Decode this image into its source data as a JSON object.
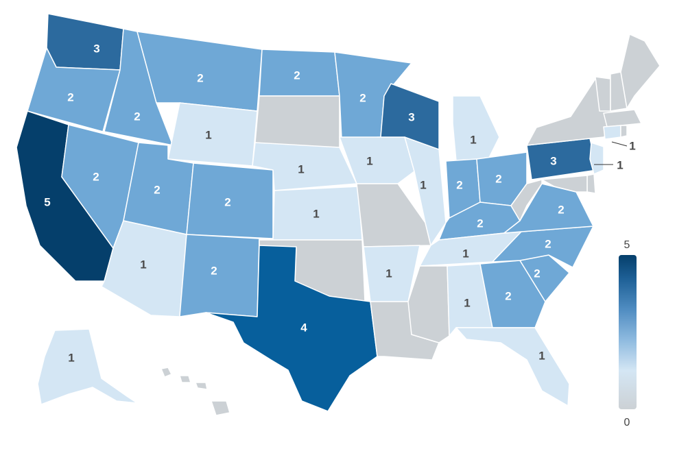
{
  "colors": {
    "0": "#ccd1d5",
    "1": "#d4e6f4",
    "2": "#6fa8d6",
    "3": "#2c6a9e",
    "4": "#075f9c",
    "5": "#053f6b",
    "label_dark": "#ffffff",
    "label_light": "#4a4a4a"
  },
  "legend": {
    "max_label": "5",
    "min_label": "0",
    "min": 0,
    "max": 5
  },
  "states": [
    {
      "id": "WA",
      "value": 3,
      "label": "3"
    },
    {
      "id": "OR",
      "value": 2,
      "label": "2"
    },
    {
      "id": "CA",
      "value": 5,
      "label": "5"
    },
    {
      "id": "ID",
      "value": 2,
      "label": "2"
    },
    {
      "id": "NV",
      "value": 2,
      "label": "2"
    },
    {
      "id": "MT",
      "value": 2,
      "label": "2"
    },
    {
      "id": "WY",
      "value": 1,
      "label": "1"
    },
    {
      "id": "UT",
      "value": 2,
      "label": "2"
    },
    {
      "id": "AZ",
      "value": 1,
      "label": "1"
    },
    {
      "id": "CO",
      "value": 2,
      "label": "2"
    },
    {
      "id": "NM",
      "value": 2,
      "label": "2"
    },
    {
      "id": "ND",
      "value": 2,
      "label": "2"
    },
    {
      "id": "SD",
      "value": 0,
      "label": ""
    },
    {
      "id": "NE",
      "value": 1,
      "label": "1"
    },
    {
      "id": "KS",
      "value": 1,
      "label": "1"
    },
    {
      "id": "OK",
      "value": 0,
      "label": ""
    },
    {
      "id": "TX",
      "value": 4,
      "label": "4"
    },
    {
      "id": "MN",
      "value": 2,
      "label": "2"
    },
    {
      "id": "IA",
      "value": 1,
      "label": "1"
    },
    {
      "id": "MO",
      "value": 0,
      "label": ""
    },
    {
      "id": "AR",
      "value": 1,
      "label": "1"
    },
    {
      "id": "LA",
      "value": 0,
      "label": ""
    },
    {
      "id": "WI",
      "value": 3,
      "label": "3"
    },
    {
      "id": "IL",
      "value": 1,
      "label": "1"
    },
    {
      "id": "MI",
      "value": 1,
      "label": "1"
    },
    {
      "id": "IN",
      "value": 2,
      "label": "2"
    },
    {
      "id": "OH",
      "value": 2,
      "label": "2"
    },
    {
      "id": "KY",
      "value": 2,
      "label": "2"
    },
    {
      "id": "TN",
      "value": 1,
      "label": "1"
    },
    {
      "id": "MS",
      "value": 0,
      "label": ""
    },
    {
      "id": "AL",
      "value": 1,
      "label": "1"
    },
    {
      "id": "GA",
      "value": 2,
      "label": "2"
    },
    {
      "id": "FL",
      "value": 1,
      "label": "1"
    },
    {
      "id": "SC",
      "value": 2,
      "label": "2"
    },
    {
      "id": "NC",
      "value": 2,
      "label": "2"
    },
    {
      "id": "VA",
      "value": 2,
      "label": "2"
    },
    {
      "id": "WV",
      "value": 0,
      "label": ""
    },
    {
      "id": "PA",
      "value": 3,
      "label": "3"
    },
    {
      "id": "NY",
      "value": 0,
      "label": ""
    },
    {
      "id": "VT",
      "value": 0,
      "label": ""
    },
    {
      "id": "NH",
      "value": 0,
      "label": ""
    },
    {
      "id": "ME",
      "value": 0,
      "label": ""
    },
    {
      "id": "MA",
      "value": 0,
      "label": ""
    },
    {
      "id": "CT",
      "value": 1,
      "label": "1"
    },
    {
      "id": "RI",
      "value": 0,
      "label": ""
    },
    {
      "id": "NJ",
      "value": 1,
      "label": "1"
    },
    {
      "id": "DE",
      "value": 0,
      "label": ""
    },
    {
      "id": "MD",
      "value": 0,
      "label": ""
    },
    {
      "id": "AK",
      "value": 1,
      "label": "1"
    },
    {
      "id": "HI",
      "value": 0,
      "label": ""
    }
  ]
}
